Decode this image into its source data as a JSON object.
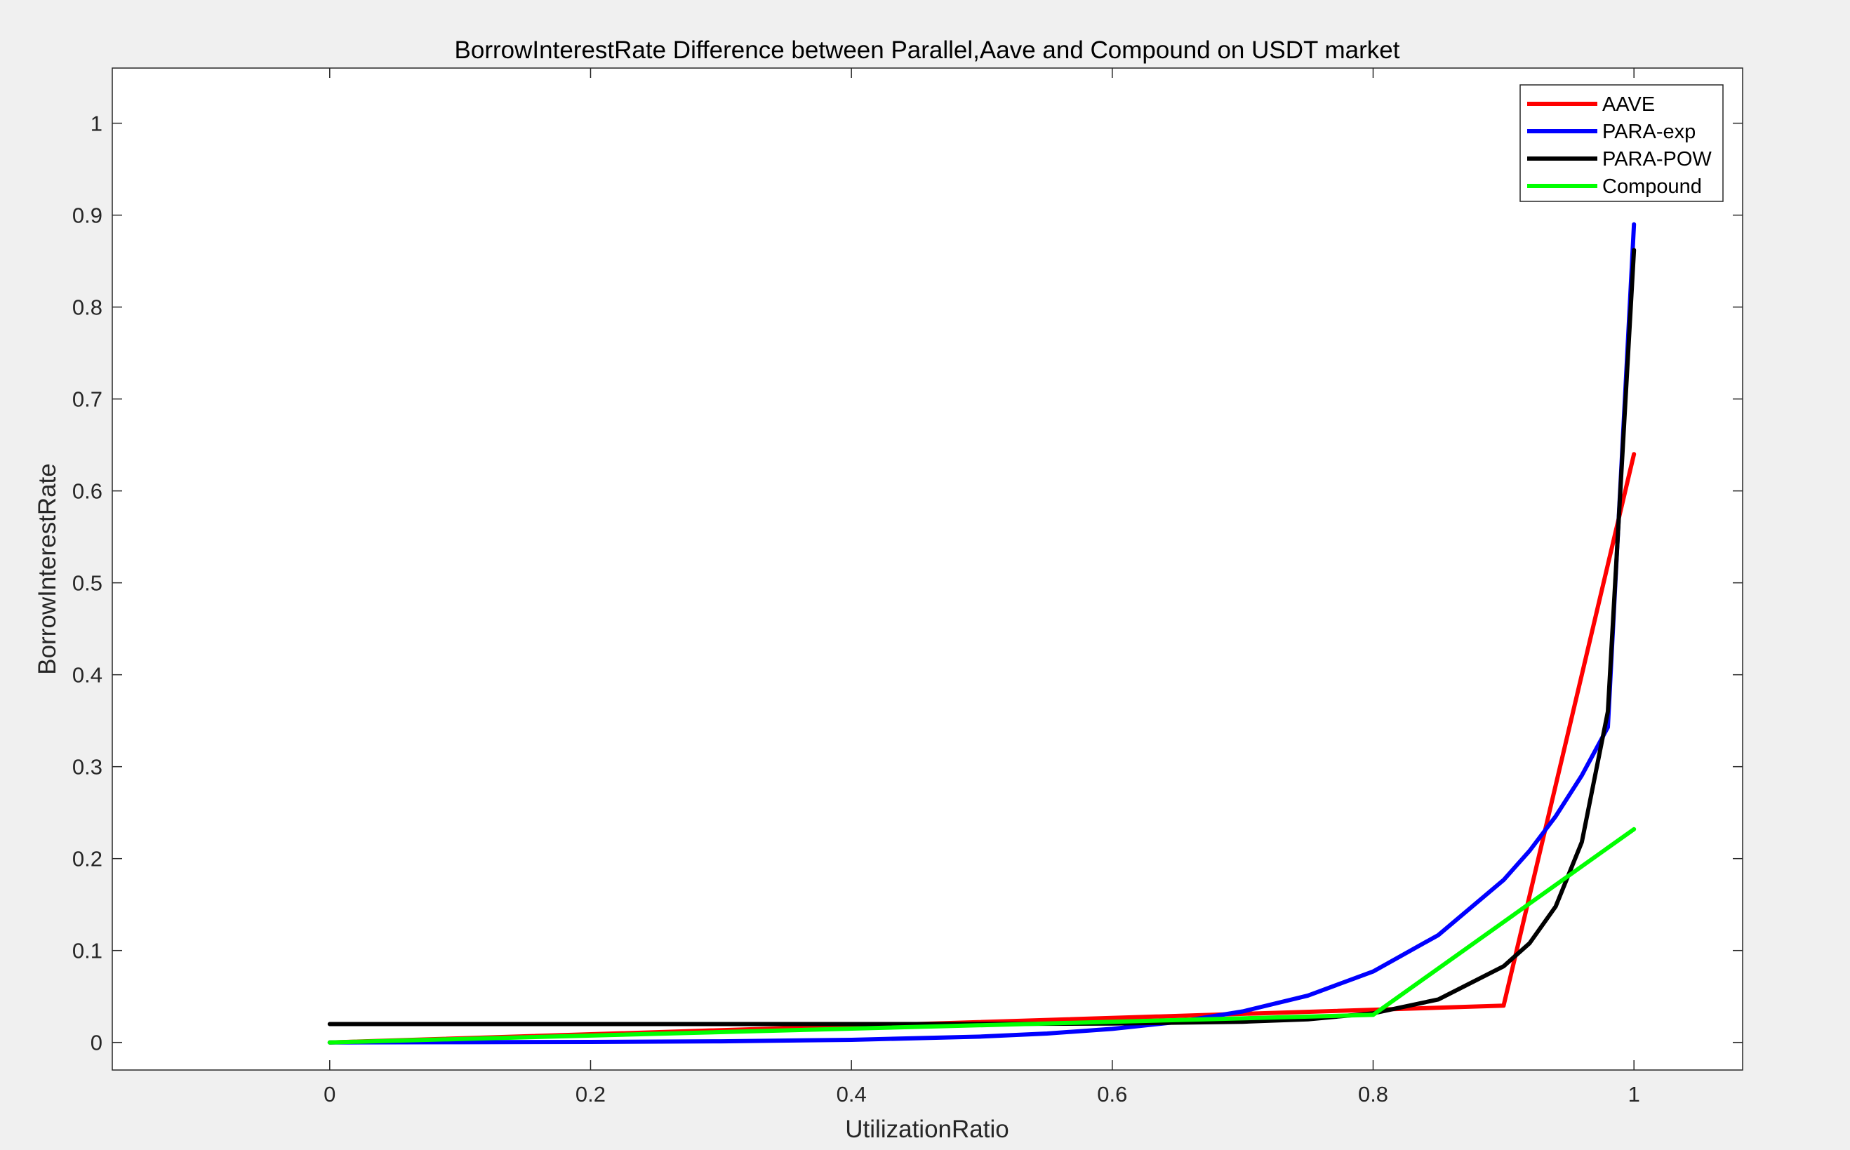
{
  "chart_data": {
    "type": "line",
    "title": "BorrowInterestRate Difference between Parallel,Aave and Compound on USDT market",
    "xlabel": "UtilizationRatio",
    "ylabel": "BorrowInterestRate",
    "xlim": [
      -0.1667,
      1.0833
    ],
    "ylim": [
      -0.03,
      1.06
    ],
    "xticks": [
      0,
      0.2,
      0.4,
      0.6,
      0.8,
      1
    ],
    "xtick_labels": [
      "0",
      "0.2",
      "0.4",
      "0.6",
      "0.8",
      "1"
    ],
    "yticks": [
      0,
      0.1,
      0.2,
      0.3,
      0.4,
      0.5,
      0.6,
      0.7,
      0.8,
      0.9,
      1
    ],
    "ytick_labels": [
      "0",
      "0.1",
      "0.2",
      "0.3",
      "0.4",
      "0.5",
      "0.6",
      "0.7",
      "0.8",
      "0.9",
      "1"
    ],
    "grid": false,
    "legend_position": "top-right",
    "series": [
      {
        "name": "AAVE",
        "color": "#ff0000",
        "x": [
          0,
          0.9,
          1
        ],
        "y": [
          0,
          0.04,
          0.64
        ]
      },
      {
        "name": "PARA-exp",
        "color": "#0000ff",
        "x": [
          0,
          0.1,
          0.2,
          0.3,
          0.4,
          0.5,
          0.55,
          0.6,
          0.65,
          0.7,
          0.75,
          0.8,
          0.85,
          0.9,
          0.92,
          0.94,
          0.96,
          0.98,
          1
        ],
        "y": [
          0,
          0.0002,
          0.0005,
          0.0012,
          0.0028,
          0.0064,
          0.0097,
          0.0147,
          0.0223,
          0.0337,
          0.051,
          0.0772,
          0.1168,
          0.1767,
          0.2085,
          0.2461,
          0.2905,
          0.3429,
          0.89
        ]
      },
      {
        "name": "PARA-POW",
        "color": "#000000",
        "x": [
          0,
          0.1,
          0.2,
          0.3,
          0.4,
          0.5,
          0.6,
          0.7,
          0.75,
          0.8,
          0.85,
          0.9,
          0.92,
          0.94,
          0.96,
          0.98,
          1
        ],
        "y": [
          0.02,
          0.02,
          0.02,
          0.02,
          0.02,
          0.0201,
          0.0205,
          0.0225,
          0.0252,
          0.0317,
          0.0468,
          0.0828,
          0.108,
          0.148,
          0.218,
          0.36,
          0.862
        ]
      },
      {
        "name": "Compound",
        "color": "#00ff00",
        "x": [
          0,
          0.8,
          1
        ],
        "y": [
          0,
          0.03,
          0.232
        ]
      }
    ]
  }
}
